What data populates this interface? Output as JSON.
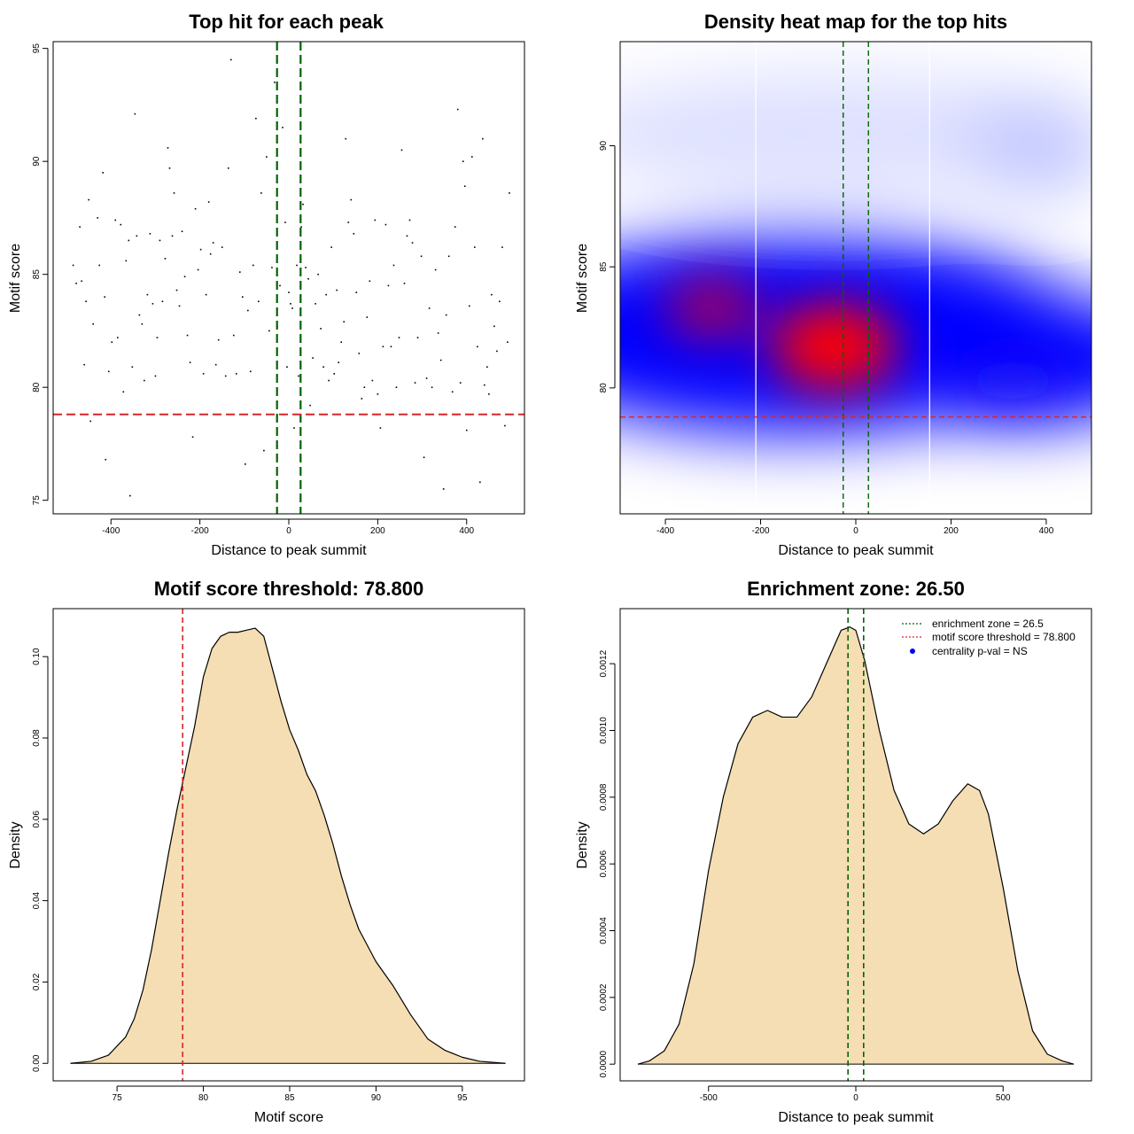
{
  "colors": {
    "green": "#006400",
    "red": "#d62728",
    "fill": "#f5deb3",
    "heat_low": "#ffffff",
    "heat_mid": "#0000ff",
    "heat_high": "#ff0000"
  },
  "chart_data": [
    {
      "id": "scatter",
      "type": "scatter",
      "title": "Top hit for each peak",
      "xlabel": "Distance to peak summit",
      "ylabel": "Motif score",
      "xlim": [
        -530,
        530
      ],
      "ylim": [
        74.4,
        95.3
      ],
      "xticks": [
        -400,
        -200,
        0,
        200,
        400
      ],
      "xtick_labels": [
        "-400",
        "-200",
        "0",
        "200",
        "400"
      ],
      "yticks": [
        75,
        80,
        85,
        90,
        95
      ],
      "ytick_labels": [
        "75",
        "80",
        "85",
        "90",
        "95"
      ],
      "vlines": [
        -26.5,
        26.5
      ],
      "hline": 78.8,
      "points": [
        [
          -485,
          85.4
        ],
        [
          -478,
          84.6
        ],
        [
          -470,
          87.1
        ],
        [
          -466,
          84.7
        ],
        [
          -460,
          81.0
        ],
        [
          -456,
          83.8
        ],
        [
          -450,
          88.3
        ],
        [
          -446,
          78.5
        ],
        [
          -440,
          82.8
        ],
        [
          -430,
          87.5
        ],
        [
          -426,
          85.4
        ],
        [
          -418,
          89.5
        ],
        [
          -414,
          84.0
        ],
        [
          -412,
          76.8
        ],
        [
          -405,
          80.7
        ],
        [
          -398,
          82.0
        ],
        [
          -390,
          87.4
        ],
        [
          -385,
          82.2
        ],
        [
          -378,
          87.2
        ],
        [
          -372,
          79.8
        ],
        [
          -366,
          85.6
        ],
        [
          -360,
          86.5
        ],
        [
          -357,
          75.2
        ],
        [
          -352,
          80.9
        ],
        [
          -346,
          92.1
        ],
        [
          -342,
          86.7
        ],
        [
          -336,
          83.2
        ],
        [
          -330,
          82.8
        ],
        [
          -325,
          80.3
        ],
        [
          -318,
          84.1
        ],
        [
          -312,
          86.8
        ],
        [
          -306,
          83.7
        ],
        [
          -300,
          80.5
        ],
        [
          -296,
          82.2
        ],
        [
          -290,
          86.5
        ],
        [
          -284,
          83.8
        ],
        [
          -278,
          85.7
        ],
        [
          -272,
          90.6
        ],
        [
          -268,
          89.7
        ],
        [
          -262,
          86.7
        ],
        [
          -258,
          88.6
        ],
        [
          -252,
          84.3
        ],
        [
          -246,
          83.6
        ],
        [
          -240,
          86.9
        ],
        [
          -234,
          84.9
        ],
        [
          -228,
          82.3
        ],
        [
          -222,
          81.1
        ],
        [
          -216,
          77.8
        ],
        [
          -210,
          87.9
        ],
        [
          -204,
          85.2
        ],
        [
          -198,
          86.1
        ],
        [
          -192,
          80.6
        ],
        [
          -186,
          84.1
        ],
        [
          -180,
          88.2
        ],
        [
          -176,
          85.9
        ],
        [
          -170,
          86.4
        ],
        [
          -164,
          81.0
        ],
        [
          -158,
          82.1
        ],
        [
          -150,
          86.2
        ],
        [
          -142,
          80.5
        ],
        [
          -136,
          89.7
        ],
        [
          -130,
          94.5
        ],
        [
          -124,
          82.3
        ],
        [
          -118,
          80.6
        ],
        [
          -110,
          85.1
        ],
        [
          -104,
          84.0
        ],
        [
          -98,
          76.6
        ],
        [
          -92,
          83.4
        ],
        [
          -86,
          80.7
        ],
        [
          -80,
          85.4
        ],
        [
          -74,
          91.9
        ],
        [
          -68,
          83.8
        ],
        [
          -62,
          88.6
        ],
        [
          -56,
          77.2
        ],
        [
          -50,
          90.2
        ],
        [
          -44,
          82.5
        ],
        [
          -38,
          85.3
        ],
        [
          -32,
          93.5
        ],
        [
          -26,
          82.7
        ],
        [
          -20,
          84.5
        ],
        [
          -14,
          91.5
        ],
        [
          -8,
          87.3
        ],
        [
          -4,
          80.9
        ],
        [
          0,
          84.2
        ],
        [
          4,
          83.7
        ],
        [
          8,
          83.5
        ],
        [
          12,
          78.2
        ],
        [
          18,
          85.4
        ],
        [
          22,
          80.5
        ],
        [
          28,
          87.1
        ],
        [
          32,
          88.1
        ],
        [
          38,
          85.3
        ],
        [
          44,
          84.8
        ],
        [
          48,
          79.2
        ],
        [
          54,
          81.3
        ],
        [
          60,
          83.7
        ],
        [
          66,
          85.0
        ],
        [
          72,
          82.6
        ],
        [
          78,
          80.9
        ],
        [
          84,
          84.1
        ],
        [
          90,
          80.3
        ],
        [
          96,
          86.2
        ],
        [
          102,
          80.6
        ],
        [
          108,
          84.3
        ],
        [
          112,
          81.1
        ],
        [
          118,
          82.0
        ],
        [
          124,
          82.9
        ],
        [
          128,
          91.0
        ],
        [
          134,
          87.3
        ],
        [
          140,
          88.3
        ],
        [
          146,
          86.8
        ],
        [
          152,
          84.2
        ],
        [
          158,
          81.5
        ],
        [
          164,
          79.5
        ],
        [
          170,
          80.0
        ],
        [
          176,
          83.1
        ],
        [
          182,
          84.7
        ],
        [
          188,
          80.3
        ],
        [
          194,
          87.4
        ],
        [
          200,
          79.7
        ],
        [
          206,
          78.2
        ],
        [
          212,
          81.8
        ],
        [
          218,
          87.2
        ],
        [
          224,
          84.5
        ],
        [
          230,
          81.8
        ],
        [
          236,
          85.4
        ],
        [
          242,
          80.0
        ],
        [
          248,
          82.2
        ],
        [
          254,
          90.5
        ],
        [
          260,
          84.6
        ],
        [
          266,
          86.7
        ],
        [
          272,
          87.4
        ],
        [
          278,
          86.4
        ],
        [
          284,
          80.2
        ],
        [
          290,
          82.2
        ],
        [
          298,
          85.8
        ],
        [
          304,
          76.9
        ],
        [
          310,
          80.4
        ],
        [
          316,
          83.5
        ],
        [
          322,
          80.0
        ],
        [
          330,
          85.2
        ],
        [
          336,
          82.4
        ],
        [
          342,
          81.2
        ],
        [
          348,
          75.5
        ],
        [
          354,
          83.2
        ],
        [
          360,
          85.8
        ],
        [
          368,
          79.8
        ],
        [
          374,
          87.1
        ],
        [
          380,
          92.3
        ],
        [
          386,
          80.2
        ],
        [
          392,
          90.0
        ],
        [
          396,
          88.9
        ],
        [
          400,
          78.1
        ],
        [
          406,
          83.6
        ],
        [
          412,
          90.2
        ],
        [
          418,
          86.2
        ],
        [
          424,
          81.8
        ],
        [
          430,
          75.8
        ],
        [
          436,
          91.0
        ],
        [
          440,
          80.1
        ],
        [
          446,
          80.9
        ],
        [
          450,
          79.7
        ],
        [
          456,
          84.1
        ],
        [
          462,
          82.7
        ],
        [
          468,
          81.6
        ],
        [
          474,
          83.8
        ],
        [
          480,
          86.2
        ],
        [
          486,
          78.3
        ],
        [
          492,
          82.0
        ],
        [
          496,
          88.6
        ]
      ]
    },
    {
      "id": "heatmap",
      "type": "heatmap",
      "title": "Density heat map for the top hits",
      "xlabel": "Distance to peak summit",
      "ylabel": "Motif score",
      "xlim": [
        -495,
        495
      ],
      "ylim": [
        74.8,
        94.3
      ],
      "xticks": [
        -400,
        -200,
        0,
        200,
        400
      ],
      "xtick_labels": [
        "-400",
        "-200",
        "0",
        "200",
        "400"
      ],
      "yticks": [
        80,
        85,
        90
      ],
      "ytick_labels": [
        "80",
        "85",
        "90"
      ],
      "white_vlines": [
        -210,
        155
      ],
      "vlines": [
        -26.5,
        26.5
      ],
      "hline": 78.8,
      "hotspots": [
        {
          "x": -45,
          "y": 81.7,
          "level": 1.0
        },
        {
          "x": -300,
          "y": 83.3,
          "level": 0.78
        },
        {
          "x": 330,
          "y": 80.3,
          "level": 0.55
        },
        {
          "x": 420,
          "y": 90.2,
          "level": 0.3
        }
      ]
    },
    {
      "id": "score-density",
      "type": "area",
      "title": "Motif score threshold: 78.800",
      "xlabel": "Motif score",
      "ylabel": "Density",
      "xlim": [
        71.3,
        98.6
      ],
      "ylim": [
        -0.0043,
        0.1118
      ],
      "xticks": [
        75,
        80,
        85,
        90,
        95
      ],
      "xtick_labels": [
        "75",
        "80",
        "85",
        "90",
        "95"
      ],
      "yticks": [
        0,
        0.02,
        0.04,
        0.06,
        0.08,
        0.1
      ],
      "ytick_labels": [
        "0.00",
        "0.02",
        "0.04",
        "0.06",
        "0.08",
        "0.10"
      ],
      "vline": 78.8,
      "x": [
        72.3,
        73.5,
        74.5,
        75.5,
        76.0,
        76.5,
        77.0,
        77.5,
        78.0,
        78.5,
        79.0,
        79.5,
        80.0,
        80.5,
        81.0,
        81.5,
        82.0,
        82.5,
        83.0,
        83.5,
        84.0,
        84.5,
        85.0,
        85.5,
        86.0,
        86.5,
        87.0,
        87.5,
        88.0,
        88.5,
        89.0,
        90.0,
        91.0,
        92.0,
        93.0,
        94.0,
        95.0,
        96.0,
        97.5
      ],
      "y": [
        0.0,
        0.0005,
        0.002,
        0.0065,
        0.011,
        0.018,
        0.028,
        0.04,
        0.052,
        0.063,
        0.073,
        0.083,
        0.095,
        0.102,
        0.105,
        0.106,
        0.106,
        0.1065,
        0.107,
        0.105,
        0.097,
        0.089,
        0.082,
        0.077,
        0.071,
        0.067,
        0.061,
        0.054,
        0.046,
        0.039,
        0.033,
        0.025,
        0.019,
        0.012,
        0.006,
        0.0032,
        0.0015,
        0.0005,
        0.0
      ]
    },
    {
      "id": "distance-density",
      "type": "area",
      "title": "Enrichment zone: 26.50",
      "xlabel": "Distance to peak summit",
      "ylabel": "Density",
      "xlim": [
        -800,
        800
      ],
      "ylim": [
        -5e-05,
        0.001365
      ],
      "xticks": [
        -500,
        0,
        500
      ],
      "xtick_labels": [
        "-500",
        "0",
        "500"
      ],
      "yticks": [
        0,
        0.0002,
        0.0004,
        0.0006,
        0.0008,
        0.001,
        0.0012
      ],
      "ytick_labels": [
        "0.0000",
        "0.0002",
        "0.0004",
        "0.0006",
        "0.0008",
        "0.0010",
        "0.0012"
      ],
      "vlines": [
        -26.5,
        26.5
      ],
      "x": [
        -740,
        -700,
        -650,
        -600,
        -550,
        -500,
        -450,
        -400,
        -350,
        -300,
        -250,
        -200,
        -150,
        -100,
        -50,
        -20,
        0,
        30,
        80,
        130,
        180,
        230,
        280,
        330,
        380,
        420,
        450,
        500,
        550,
        600,
        650,
        700,
        740
      ],
      "y": [
        0.0,
        1e-05,
        4e-05,
        0.00012,
        0.0003,
        0.00058,
        0.0008,
        0.00096,
        0.00104,
        0.00106,
        0.00104,
        0.00104,
        0.0011,
        0.0012,
        0.0013,
        0.00131,
        0.0013,
        0.00121,
        0.001,
        0.00082,
        0.00072,
        0.00069,
        0.00072,
        0.00079,
        0.00084,
        0.00082,
        0.00075,
        0.00053,
        0.00028,
        0.0001,
        3e-05,
        1e-05,
        0.0
      ],
      "legend": [
        {
          "label": "enrichment zone = 26.5",
          "kind": "green-line"
        },
        {
          "label": "motif score threshold = 78.800",
          "kind": "red-line"
        },
        {
          "label": "centrality p-val = NS",
          "kind": "blue-dot"
        }
      ]
    }
  ]
}
